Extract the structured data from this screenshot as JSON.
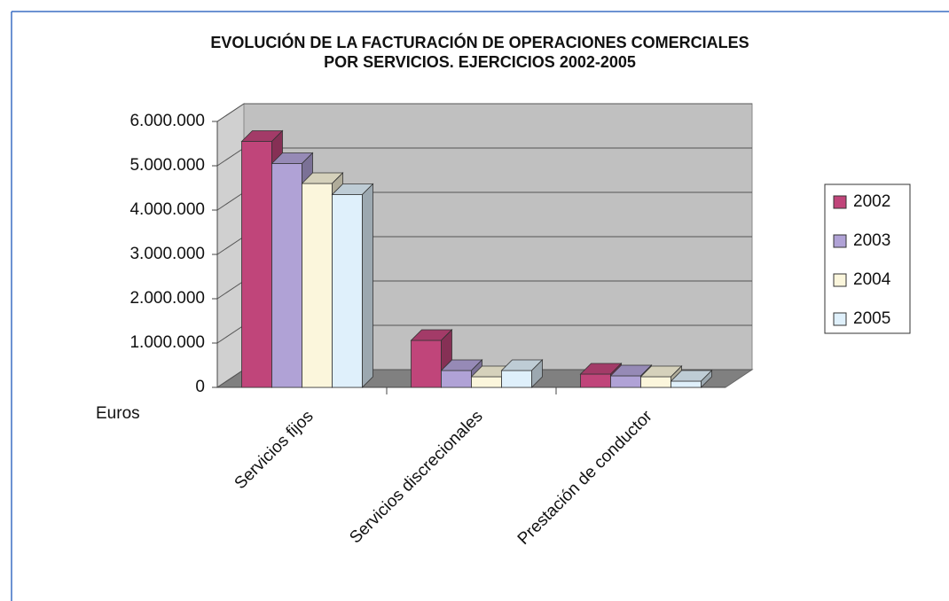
{
  "chart_data": {
    "type": "bar3d",
    "title": "EVOLUCIÓN DE LA FACTURACIÓN DE OPERACIONES COMERCIALES",
    "subtitle": "POR SERVICIOS. EJERCICIOS 2002-2005",
    "y_label": "Euros",
    "categories": [
      "Servicios fijos",
      "Servicios discrecionales",
      "Prestación de conductor"
    ],
    "series": [
      {
        "name": "2002",
        "color": "#c0457a",
        "values": [
          5550000,
          1060000,
          300000
        ]
      },
      {
        "name": "2003",
        "color": "#b0a2d6",
        "values": [
          5050000,
          380000,
          260000
        ]
      },
      {
        "name": "2004",
        "color": "#fbf6dc",
        "values": [
          4600000,
          240000,
          240000
        ]
      },
      {
        "name": "2005",
        "color": "#dff0fb",
        "values": [
          4350000,
          380000,
          140000
        ]
      }
    ],
    "ylim": [
      0,
      6000000
    ],
    "yticks": [
      0,
      {
        "value": 1000000,
        "label": "1.000.000"
      },
      {
        "value": 2000000,
        "label": "2.000.000"
      },
      {
        "value": 3000000,
        "label": "3.000.000"
      },
      {
        "value": 4000000,
        "label": "4.000.000"
      },
      {
        "value": 5000000,
        "label": "5.000.000"
      },
      {
        "value": 6000000,
        "label": "6.000.000"
      }
    ],
    "legend": "right"
  }
}
